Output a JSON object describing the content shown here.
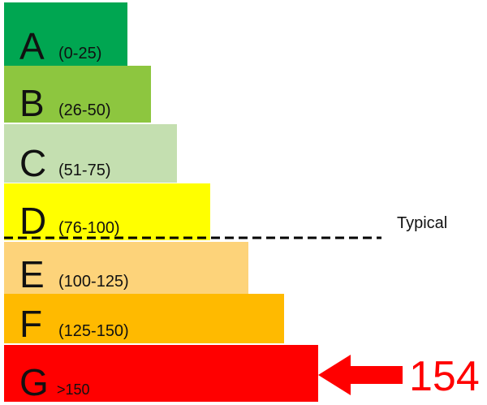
{
  "chart_data": {
    "type": "bar",
    "orientation": "horizontal",
    "categories": [
      {
        "letter": "A",
        "range": "(0-25)",
        "color": "#00a651"
      },
      {
        "letter": "B",
        "range": "(26-50)",
        "color": "#8dc63f"
      },
      {
        "letter": "C",
        "range": "(51-75)",
        "color": "#c4dfb0"
      },
      {
        "letter": "D",
        "range": "(76-100)",
        "color": "#ffff00"
      },
      {
        "letter": "E",
        "range": "(100-125)",
        "color": "#fdd37a"
      },
      {
        "letter": "F",
        "range": "(125-150)",
        "color": "#ffba00"
      },
      {
        "letter": "G",
        "range": ">150",
        "color": "#ff0000"
      }
    ],
    "typical": {
      "label": "Typical",
      "between": [
        "D",
        "E"
      ]
    },
    "indicator": {
      "value": "154",
      "category": "G",
      "color": "#ff0000"
    }
  }
}
